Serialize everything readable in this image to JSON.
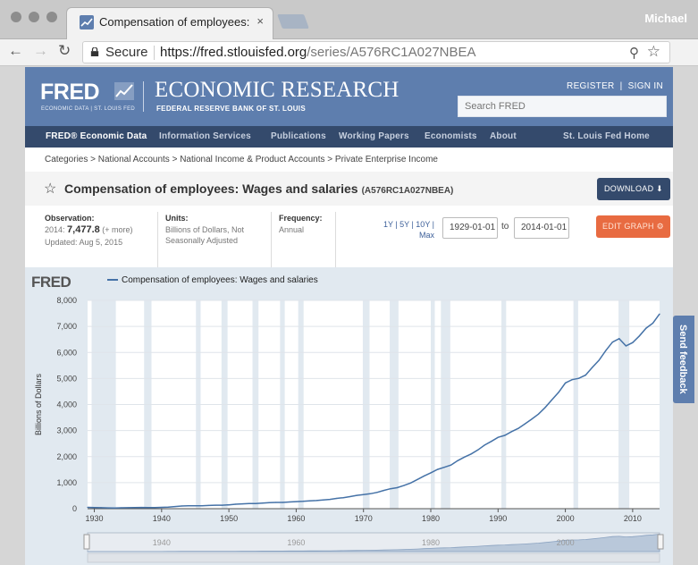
{
  "browser": {
    "tab_title": "Compensation of employees: W",
    "tab_close": "×",
    "user": "Michael",
    "secure_label": "Secure",
    "url_host": "https://fred.stlouisfed.org",
    "url_path": "/series/A576RC1A027NBEA",
    "back_icon": "←",
    "forward_icon": "→",
    "reload_icon": "↻",
    "zoom_icon": "⚲",
    "star_icon": "☆"
  },
  "header": {
    "logo": "FRED",
    "logo_sub": "ECONOMIC DATA  |  ST. LOUIS FED",
    "title": "ECONOMIC RESEARCH",
    "subtitle": "FEDERAL RESERVE BANK OF ST. LOUIS",
    "register": "REGISTER",
    "signin": "SIGN IN",
    "search_placeholder": "Search FRED"
  },
  "nav": {
    "items": [
      "FRED® Economic Data",
      "Information Services",
      "Publications",
      "Working Papers",
      "Economists",
      "About"
    ],
    "right": "St. Louis Fed Home"
  },
  "breadcrumbs": "Categories > National Accounts > National Income & Product Accounts > Private Enterprise Income",
  "series": {
    "title": "Compensation of employees: Wages and salaries",
    "id": "(A576RC1A027NBEA)",
    "download": "DOWNLOAD ⬇",
    "observation_label": "Observation:",
    "observation_year": "2014:",
    "observation_value": "7,477.8",
    "observation_more": "(+ more)",
    "updated": "Updated: Aug 5, 2015",
    "units_label": "Units:",
    "units_value": "Billions of Dollars, Not Seasonally Adjusted",
    "frequency_label": "Frequency:",
    "frequency_value": "Annual",
    "ranges": "1Y | 5Y | 10Y | Max",
    "date_from": "1929-01-01",
    "date_to": "2014-01-01",
    "to_label": "to",
    "edit_graph": "EDIT GRAPH ⚙"
  },
  "chart": {
    "logo": "FRED",
    "legend": "Compensation of employees: Wages and salaries"
  },
  "feedback": "Send feedback",
  "colors": {
    "header": "#5e7eae",
    "nav": "#344a6c",
    "line": "#4572a7",
    "recession": "#e1e9f0",
    "edit_button": "#e86b41"
  },
  "chart_data": {
    "type": "line",
    "title": "",
    "xlabel": "",
    "ylabel": "Billions of Dollars",
    "xlim": [
      1929,
      2014
    ],
    "ylim": [
      0,
      8000
    ],
    "x_ticks": [
      1930,
      1940,
      1950,
      1960,
      1970,
      1980,
      1990,
      2000,
      2010
    ],
    "y_ticks": [
      "0",
      "1,000",
      "2,000",
      "3,000",
      "4,000",
      "5,000",
      "6,000",
      "7,000",
      "8,000"
    ],
    "grid": true,
    "recessions": [
      [
        1929.6,
        1933.2
      ],
      [
        1937.4,
        1938.5
      ],
      [
        1945.1,
        1945.8
      ],
      [
        1948.9,
        1949.8
      ],
      [
        1953.5,
        1954.4
      ],
      [
        1957.6,
        1958.3
      ],
      [
        1960.3,
        1961.1
      ],
      [
        1969.9,
        1970.9
      ],
      [
        1973.9,
        1975.2
      ],
      [
        1980,
        1980.6
      ],
      [
        1981.5,
        1982.9
      ],
      [
        1990.5,
        1991.2
      ],
      [
        2001.2,
        2001.9
      ],
      [
        2007.9,
        2009.5
      ]
    ],
    "range_slider_labels": [
      "1940",
      "1960",
      "1980",
      "2000"
    ],
    "series": [
      {
        "name": "Compensation of employees: Wages and salaries",
        "x": [
          1929,
          1930,
          1931,
          1932,
          1933,
          1934,
          1935,
          1936,
          1937,
          1938,
          1939,
          1940,
          1941,
          1942,
          1943,
          1944,
          1945,
          1946,
          1947,
          1948,
          1949,
          1950,
          1951,
          1952,
          1953,
          1954,
          1955,
          1956,
          1957,
          1958,
          1959,
          1960,
          1961,
          1962,
          1963,
          1964,
          1965,
          1966,
          1967,
          1968,
          1969,
          1970,
          1971,
          1972,
          1973,
          1974,
          1975,
          1976,
          1977,
          1978,
          1979,
          1980,
          1981,
          1982,
          1983,
          1984,
          1985,
          1986,
          1987,
          1988,
          1989,
          1990,
          1991,
          1992,
          1993,
          1994,
          1995,
          1996,
          1997,
          1998,
          1999,
          2000,
          2001,
          2002,
          2003,
          2004,
          2005,
          2006,
          2007,
          2008,
          2009,
          2010,
          2011,
          2012,
          2013,
          2014
        ],
        "values": [
          51,
          46,
          39,
          31,
          29,
          34,
          37,
          42,
          47,
          43,
          46,
          50,
          62,
          83,
          104,
          114,
          114,
          113,
          123,
          135,
          134,
          147,
          171,
          186,
          199,
          197,
          212,
          229,
          240,
          241,
          259,
          272,
          280,
          298,
          312,
          334,
          358,
          395,
          423,
          464,
          510,
          542,
          574,
          626,
          701,
          766,
          806,
          890,
          984,
          1118,
          1256,
          1378,
          1509,
          1588,
          1677,
          1844,
          1981,
          2102,
          2257,
          2440,
          2585,
          2741,
          2815,
          2958,
          3083,
          3257,
          3437,
          3633,
          3888,
          4183,
          4470,
          4827,
          4953,
          5005,
          5130,
          5425,
          5701,
          6070,
          6395,
          6532,
          6252,
          6378,
          6633,
          6932,
          7124,
          7478
        ]
      }
    ]
  }
}
